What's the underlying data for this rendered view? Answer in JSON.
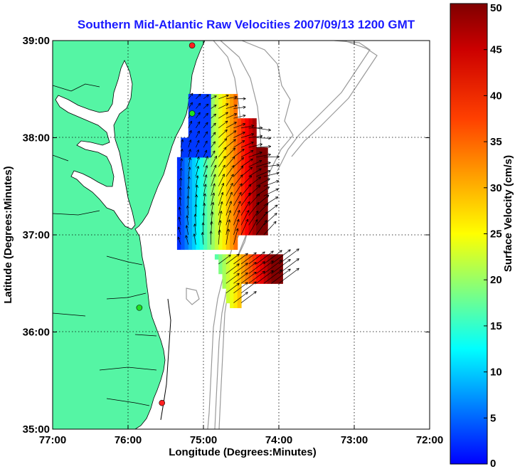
{
  "title": "Southern Mid-Atlantic Raw Velocities 2007/09/13 1200 GMT",
  "map": {
    "xlabel": "Longitude (Degrees:Minutes)",
    "ylabel": "Latitude (Degrees:Minutes)",
    "lon_range": [
      -77,
      -72
    ],
    "lat_range": [
      35,
      39
    ],
    "x_ticks": [
      {
        "value": -77,
        "label": "77:00"
      },
      {
        "value": -76,
        "label": "76:00"
      },
      {
        "value": -75,
        "label": "75:00"
      },
      {
        "value": -74,
        "label": "74:00"
      },
      {
        "value": -73,
        "label": "73:00"
      },
      {
        "value": -72,
        "label": "72:00"
      }
    ],
    "y_ticks": [
      {
        "value": 39,
        "label": "39:00"
      },
      {
        "value": 38,
        "label": "38:00"
      },
      {
        "value": 37,
        "label": "37:00"
      },
      {
        "value": 36,
        "label": "36:00"
      },
      {
        "value": 35,
        "label": "35:00"
      }
    ],
    "grid": "dotted",
    "land_color": "#55f5a4",
    "water_color": "#ffffff",
    "bathymetry_color": "#999999",
    "station_sites": [
      {
        "lon": -75.15,
        "lat": 38.95,
        "color": "#ff2020"
      },
      {
        "lon": -75.15,
        "lat": 38.25,
        "color": "#20e020"
      },
      {
        "lon": -75.85,
        "lat": 36.25,
        "color": "#20e020"
      },
      {
        "lon": -75.55,
        "lat": 35.27,
        "color": "#ff2020"
      }
    ]
  },
  "colorbar": {
    "label": "Surface Velocity (cm/s)",
    "min": 0,
    "max": 50,
    "ticks": [
      {
        "value": 50,
        "label": "50"
      },
      {
        "value": 45,
        "label": "45"
      },
      {
        "value": 40,
        "label": "40"
      },
      {
        "value": 35,
        "label": "35"
      },
      {
        "value": 30,
        "label": "30"
      },
      {
        "value": 25,
        "label": "25"
      },
      {
        "value": 20,
        "label": "20"
      },
      {
        "value": 15,
        "label": "15"
      },
      {
        "value": 10,
        "label": "10"
      },
      {
        "value": 5,
        "label": "5"
      },
      {
        "value": 0,
        "label": "0"
      }
    ],
    "palette": "jet"
  },
  "chart_data": {
    "type": "heatmap",
    "units": "cm/s",
    "regions": [
      {
        "name": "",
        "lon": [
          -75.35,
          -74.15
        ],
        "lat": [
          36.85,
          38.45
        ]
      },
      {
        "name": "",
        "lon": [
          -75.05,
          -73.95
        ],
        "lat": [
          36.25,
          36.8
        ]
      }
    ]
  }
}
